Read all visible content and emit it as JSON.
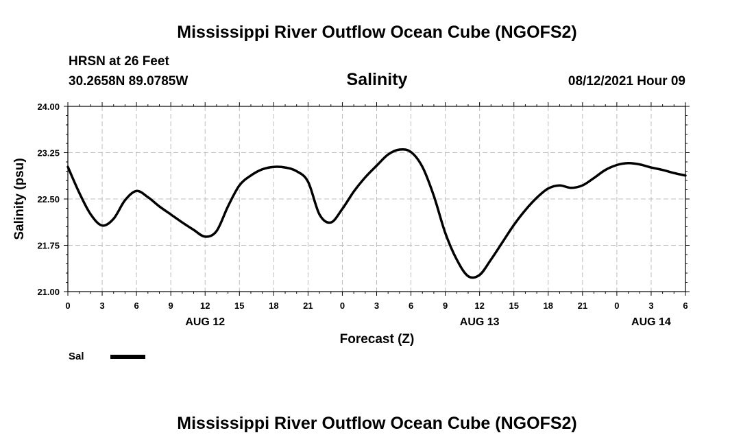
{
  "header": {
    "title": "Mississippi River Outflow Ocean Cube (NGOFS2)",
    "station": "HRSN at 26 Feet",
    "coords": "30.2658N  89.0785W",
    "subtitle": "Salinity",
    "datetime": "08/12/2021 Hour 09"
  },
  "footer": {
    "title": "Mississippi River Outflow Ocean Cube (NGOFS2)"
  },
  "colors": {
    "line": "#000000",
    "grid": "#bdbdbd",
    "background": "#ffffff"
  },
  "chart_data": {
    "type": "line",
    "title": "Salinity",
    "xlabel": "Forecast (Z)",
    "ylabel": "Salinity (psu)",
    "xlim": [
      0,
      54
    ],
    "ylim": [
      21.0,
      24.0
    ],
    "yticks": [
      "21.00",
      "21.75",
      "22.50",
      "23.25",
      "24.00"
    ],
    "xtick_labels": [
      "0",
      "3",
      "6",
      "9",
      "12",
      "15",
      "18",
      "21",
      "0",
      "3",
      "6",
      "9",
      "12",
      "15",
      "18",
      "21",
      "0",
      "3",
      "6"
    ],
    "day_labels": [
      {
        "label": "AUG 12",
        "hour": 12
      },
      {
        "label": "AUG 13",
        "hour": 36
      },
      {
        "label": "AUG 14",
        "hour": 51
      }
    ],
    "grid": true,
    "legend": [
      {
        "name": "Sal"
      }
    ],
    "series": [
      {
        "name": "Sal",
        "x": [
          0,
          1,
          2,
          3,
          4,
          5,
          6,
          7,
          8,
          9,
          10,
          11,
          12,
          13,
          14,
          15,
          16,
          17,
          18,
          19,
          20,
          21,
          22,
          23,
          24,
          25,
          26,
          27,
          28,
          29,
          30,
          31,
          32,
          33,
          34,
          35,
          36,
          37,
          38,
          39,
          40,
          41,
          42,
          43,
          44,
          45,
          46,
          47,
          48,
          49,
          50,
          51,
          52,
          53,
          54
        ],
        "y": [
          23.02,
          22.6,
          22.25,
          22.07,
          22.18,
          22.48,
          22.63,
          22.53,
          22.38,
          22.25,
          22.12,
          22.0,
          21.89,
          21.98,
          22.38,
          22.72,
          22.88,
          22.98,
          23.02,
          23.01,
          22.95,
          22.78,
          22.25,
          22.12,
          22.34,
          22.62,
          22.85,
          23.04,
          23.22,
          23.3,
          23.26,
          23.02,
          22.55,
          21.95,
          21.52,
          21.25,
          21.27,
          21.52,
          21.8,
          22.08,
          22.32,
          22.52,
          22.67,
          22.72,
          22.68,
          22.72,
          22.84,
          22.97,
          23.05,
          23.08,
          23.06,
          23.01,
          22.97,
          22.92,
          22.88
        ]
      }
    ]
  }
}
